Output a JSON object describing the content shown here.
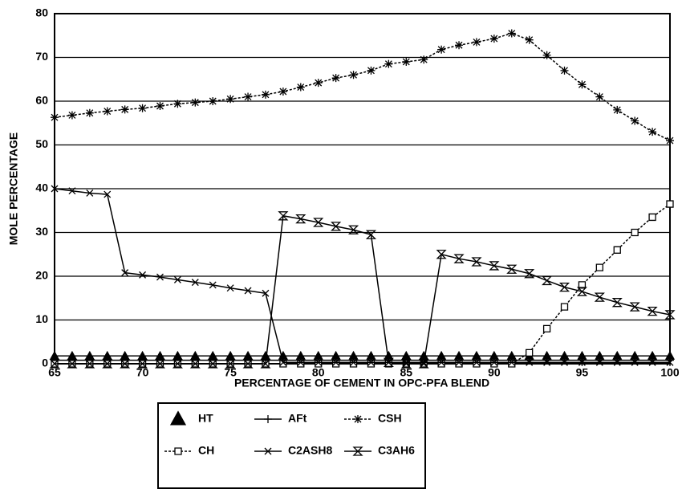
{
  "chart_data": {
    "type": "line",
    "x_label": "PERCENTAGE OF CEMENT IN OPC-PFA BLEND",
    "y_label": "MOLE PERCENTAGE",
    "x": [
      65,
      66,
      67,
      68,
      69,
      70,
      71,
      72,
      73,
      74,
      75,
      76,
      77,
      78,
      79,
      80,
      81,
      82,
      83,
      84,
      85,
      86,
      87,
      88,
      89,
      90,
      91,
      92,
      93,
      94,
      95,
      96,
      97,
      98,
      99,
      100
    ],
    "xlim": [
      65,
      100
    ],
    "xticks": [
      65,
      70,
      75,
      80,
      85,
      90,
      95,
      100
    ],
    "ylim": [
      0,
      80
    ],
    "yticks": [
      0,
      10,
      20,
      30,
      40,
      50,
      60,
      70,
      80
    ],
    "grid": true,
    "series": [
      {
        "name": "HT",
        "color": "#000000",
        "marker": "triangle",
        "dashed": false,
        "values": [
          1.8,
          1.8,
          1.8,
          1.8,
          1.8,
          1.8,
          1.8,
          1.8,
          1.8,
          1.8,
          1.8,
          1.8,
          1.8,
          1.8,
          1.8,
          1.8,
          1.8,
          1.8,
          1.8,
          1.8,
          1.8,
          1.8,
          1.8,
          1.8,
          1.8,
          1.8,
          1.8,
          1.8,
          1.8,
          1.8,
          1.8,
          1.8,
          1.8,
          1.8,
          1.8,
          1.8
        ]
      },
      {
        "name": "AFt",
        "color": "#000000",
        "marker": "plus",
        "dashed": false,
        "values": [
          0.8,
          0.8,
          0.8,
          0.8,
          0.8,
          0.8,
          0.8,
          0.8,
          0.8,
          0.8,
          0.8,
          0.8,
          0.8,
          0.8,
          0.8,
          0.8,
          0.8,
          0.8,
          0.8,
          0.8,
          0.8,
          0.8,
          0.8,
          0.8,
          0.8,
          0.8,
          0.8,
          0.8,
          0.8,
          0.8,
          0.8,
          0.8,
          0.8,
          0.8,
          0.8,
          0.8
        ]
      },
      {
        "name": "CSH",
        "color": "#000000",
        "marker": "asterisk",
        "dashed": true,
        "values": [
          56.3,
          56.8,
          57.3,
          57.7,
          58.1,
          58.4,
          58.9,
          59.4,
          59.7,
          60,
          60.5,
          61,
          61.5,
          62.2,
          63.2,
          64.2,
          65.3,
          66,
          67,
          68.5,
          69,
          69.5,
          71.8,
          72.8,
          73.5,
          74.3,
          75.5,
          74,
          70.5,
          67,
          63.8,
          61,
          58,
          55.5,
          53,
          51
        ]
      },
      {
        "name": "CH",
        "color": "#000000",
        "marker": "square",
        "dashed": true,
        "values": [
          0,
          0,
          0,
          0,
          0,
          0,
          0,
          0,
          0,
          0,
          0,
          0,
          0,
          0,
          0,
          0,
          0,
          0,
          0,
          0,
          0,
          0,
          0,
          0,
          0,
          0,
          0,
          2.5,
          8,
          13,
          18,
          22,
          26,
          30,
          33.5,
          36.5
        ]
      },
      {
        "name": "C2ASH8",
        "color": "#000000",
        "marker": "cross",
        "dashed": false,
        "values": [
          40,
          39.5,
          39,
          38.7,
          20.8,
          20.3,
          19.8,
          19.2,
          18.6,
          18,
          17.3,
          16.7,
          16.1,
          0.3,
          0.3,
          0.3,
          0.3,
          0.3,
          0.3,
          0.3,
          0.3,
          0.3,
          0.3,
          0.3,
          0.3,
          0.3,
          0.3,
          0.3,
          0.3,
          0.3,
          0.3,
          0.3,
          0.3,
          0.3,
          0.3,
          0.3
        ]
      },
      {
        "name": "C3AH6",
        "color": "#000000",
        "marker": "hourglass",
        "dashed": false,
        "values": [
          0,
          0,
          0,
          0,
          0,
          0,
          0,
          0,
          0,
          0,
          0,
          0,
          0,
          33.8,
          33.1,
          32.3,
          31.4,
          30.6,
          29.5,
          0.3,
          0,
          0,
          25,
          24,
          23.3,
          22.4,
          21.6,
          20.6,
          19,
          17.5,
          16.5,
          15.2,
          14,
          13,
          12,
          11.2
        ]
      }
    ]
  }
}
